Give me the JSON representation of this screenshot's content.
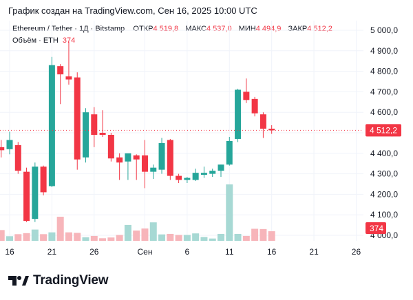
{
  "caption": "График создан на TradingView.com, Сен 16, 2025 10:00 UTC",
  "legend": {
    "symbol": "Ethereum / Tether · 1Д · Bitstamp",
    "open_label": "ОТКР",
    "open_value": "4 519,8",
    "high_label": "МАКС",
    "high_value": "4 537,0",
    "low_label": "МИН",
    "low_value": "4 494,9",
    "close_label": "ЗАКР",
    "close_value": "4 512,2"
  },
  "volume_legend": {
    "label": "Объём · ETH",
    "value": "374"
  },
  "price_tag": "4 512,2",
  "volume_tag": "374",
  "logo_text": "TradingView",
  "colors": {
    "up": "#26a69a",
    "down": "#f23645",
    "up_volume": "#a7d9d4",
    "down_volume": "#f7b5ba",
    "grid": "#f0f3fa",
    "text": "#131722",
    "axis_text": "#131722"
  },
  "chart_data": {
    "type": "candlestick",
    "y_axis": {
      "min": 4000,
      "max": 5000,
      "ticks": [
        "5 000,0",
        "4 900,0",
        "4 800,0",
        "4 700,0",
        "4 600,0",
        "4 500,0",
        "4 400,0",
        "4 300,0",
        "4 200,0",
        "4 100,0",
        "4 000,0"
      ]
    },
    "x_tick_labels": [
      {
        "label": "16",
        "date": "2025-08-16"
      },
      {
        "label": "21",
        "date": "2025-08-21"
      },
      {
        "label": "26",
        "date": "2025-08-26"
      },
      {
        "label": "Сен",
        "date": "2025-09-01"
      },
      {
        "label": "6",
        "date": "2025-09-06"
      },
      {
        "label": "11",
        "date": "2025-09-11"
      },
      {
        "label": "16",
        "date": "2025-09-16"
      },
      {
        "label": "21",
        "date": "2025-09-21"
      },
      {
        "label": "26",
        "date": "2025-09-26"
      }
    ],
    "last_close": 4512.2,
    "candles": [
      {
        "date": "2025-08-15",
        "open": 4430,
        "high": 4465,
        "low": 4380,
        "close": 4415
      },
      {
        "date": "2025-08-16",
        "open": 4420,
        "high": 4505,
        "low": 4395,
        "close": 4465
      },
      {
        "date": "2025-08-17",
        "open": 4440,
        "high": 4455,
        "low": 4300,
        "close": 4315
      },
      {
        "date": "2025-08-18",
        "open": 4310,
        "high": 4330,
        "low": 4065,
        "close": 4070
      },
      {
        "date": "2025-08-19",
        "open": 4080,
        "high": 4355,
        "low": 4065,
        "close": 4335
      },
      {
        "date": "2025-08-20",
        "open": 4335,
        "high": 4340,
        "low": 4195,
        "close": 4210
      },
      {
        "date": "2025-08-21",
        "open": 4240,
        "high": 4870,
        "low": 4235,
        "close": 4830
      },
      {
        "date": "2025-08-22",
        "open": 4825,
        "high": 4835,
        "low": 4640,
        "close": 4785
      },
      {
        "date": "2025-08-23",
        "open": 4775,
        "high": 4945,
        "low": 4735,
        "close": 4760
      },
      {
        "date": "2025-08-24",
        "open": 4770,
        "high": 4795,
        "low": 4320,
        "close": 4370
      },
      {
        "date": "2025-08-25",
        "open": 4380,
        "high": 4620,
        "low": 4355,
        "close": 4600
      },
      {
        "date": "2025-08-26",
        "open": 4590,
        "high": 4625,
        "low": 4430,
        "close": 4490
      },
      {
        "date": "2025-08-27",
        "open": 4500,
        "high": 4610,
        "low": 4480,
        "close": 4490
      },
      {
        "date": "2025-08-28",
        "open": 4490,
        "high": 4500,
        "low": 4360,
        "close": 4375
      },
      {
        "date": "2025-08-29",
        "open": 4380,
        "high": 4400,
        "low": 4270,
        "close": 4355
      },
      {
        "date": "2025-08-30",
        "open": 4360,
        "high": 4390,
        "low": 4270,
        "close": 4400
      },
      {
        "date": "2025-08-31",
        "open": 4390,
        "high": 4395,
        "low": 4270,
        "close": 4370
      },
      {
        "date": "2025-09-01",
        "open": 4390,
        "high": 4465,
        "low": 4230,
        "close": 4310
      },
      {
        "date": "2025-09-02",
        "open": 4310,
        "high": 4345,
        "low": 4275,
        "close": 4330
      },
      {
        "date": "2025-09-03",
        "open": 4320,
        "high": 4475,
        "low": 4300,
        "close": 4450
      },
      {
        "date": "2025-09-04",
        "open": 4465,
        "high": 4470,
        "low": 4270,
        "close": 4290
      },
      {
        "date": "2025-09-05",
        "open": 4290,
        "high": 4300,
        "low": 4255,
        "close": 4270
      },
      {
        "date": "2025-09-06",
        "open": 4270,
        "high": 4285,
        "low": 4255,
        "close": 4280
      },
      {
        "date": "2025-09-07",
        "open": 4270,
        "high": 4325,
        "low": 4265,
        "close": 4305
      },
      {
        "date": "2025-09-08",
        "open": 4295,
        "high": 4335,
        "low": 4280,
        "close": 4305
      },
      {
        "date": "2025-09-09",
        "open": 4300,
        "high": 4325,
        "low": 4285,
        "close": 4315
      },
      {
        "date": "2025-09-10",
        "open": 4315,
        "high": 4345,
        "low": 4285,
        "close": 4345
      },
      {
        "date": "2025-09-11",
        "open": 4345,
        "high": 4480,
        "low": 4340,
        "close": 4460
      },
      {
        "date": "2025-09-12",
        "open": 4470,
        "high": 4715,
        "low": 4455,
        "close": 4710
      },
      {
        "date": "2025-09-13",
        "open": 4700,
        "high": 4765,
        "low": 4645,
        "close": 4660
      },
      {
        "date": "2025-09-14",
        "open": 4665,
        "high": 4675,
        "low": 4580,
        "close": 4595
      },
      {
        "date": "2025-09-15",
        "open": 4590,
        "high": 4600,
        "low": 4475,
        "close": 4520
      },
      {
        "date": "2025-09-16",
        "open": 4519.8,
        "high": 4537.0,
        "low": 4494.9,
        "close": 4512.2
      }
    ],
    "volume": {
      "max_scale": 2200,
      "values": [
        420,
        180,
        260,
        300,
        440,
        260,
        330,
        940,
        330,
        310,
        140,
        190,
        100,
        130,
        230,
        620,
        400,
        480,
        720,
        250,
        270,
        230,
        230,
        290,
        150,
        90,
        270,
        2200,
        270,
        190,
        470,
        460,
        374
      ]
    }
  }
}
